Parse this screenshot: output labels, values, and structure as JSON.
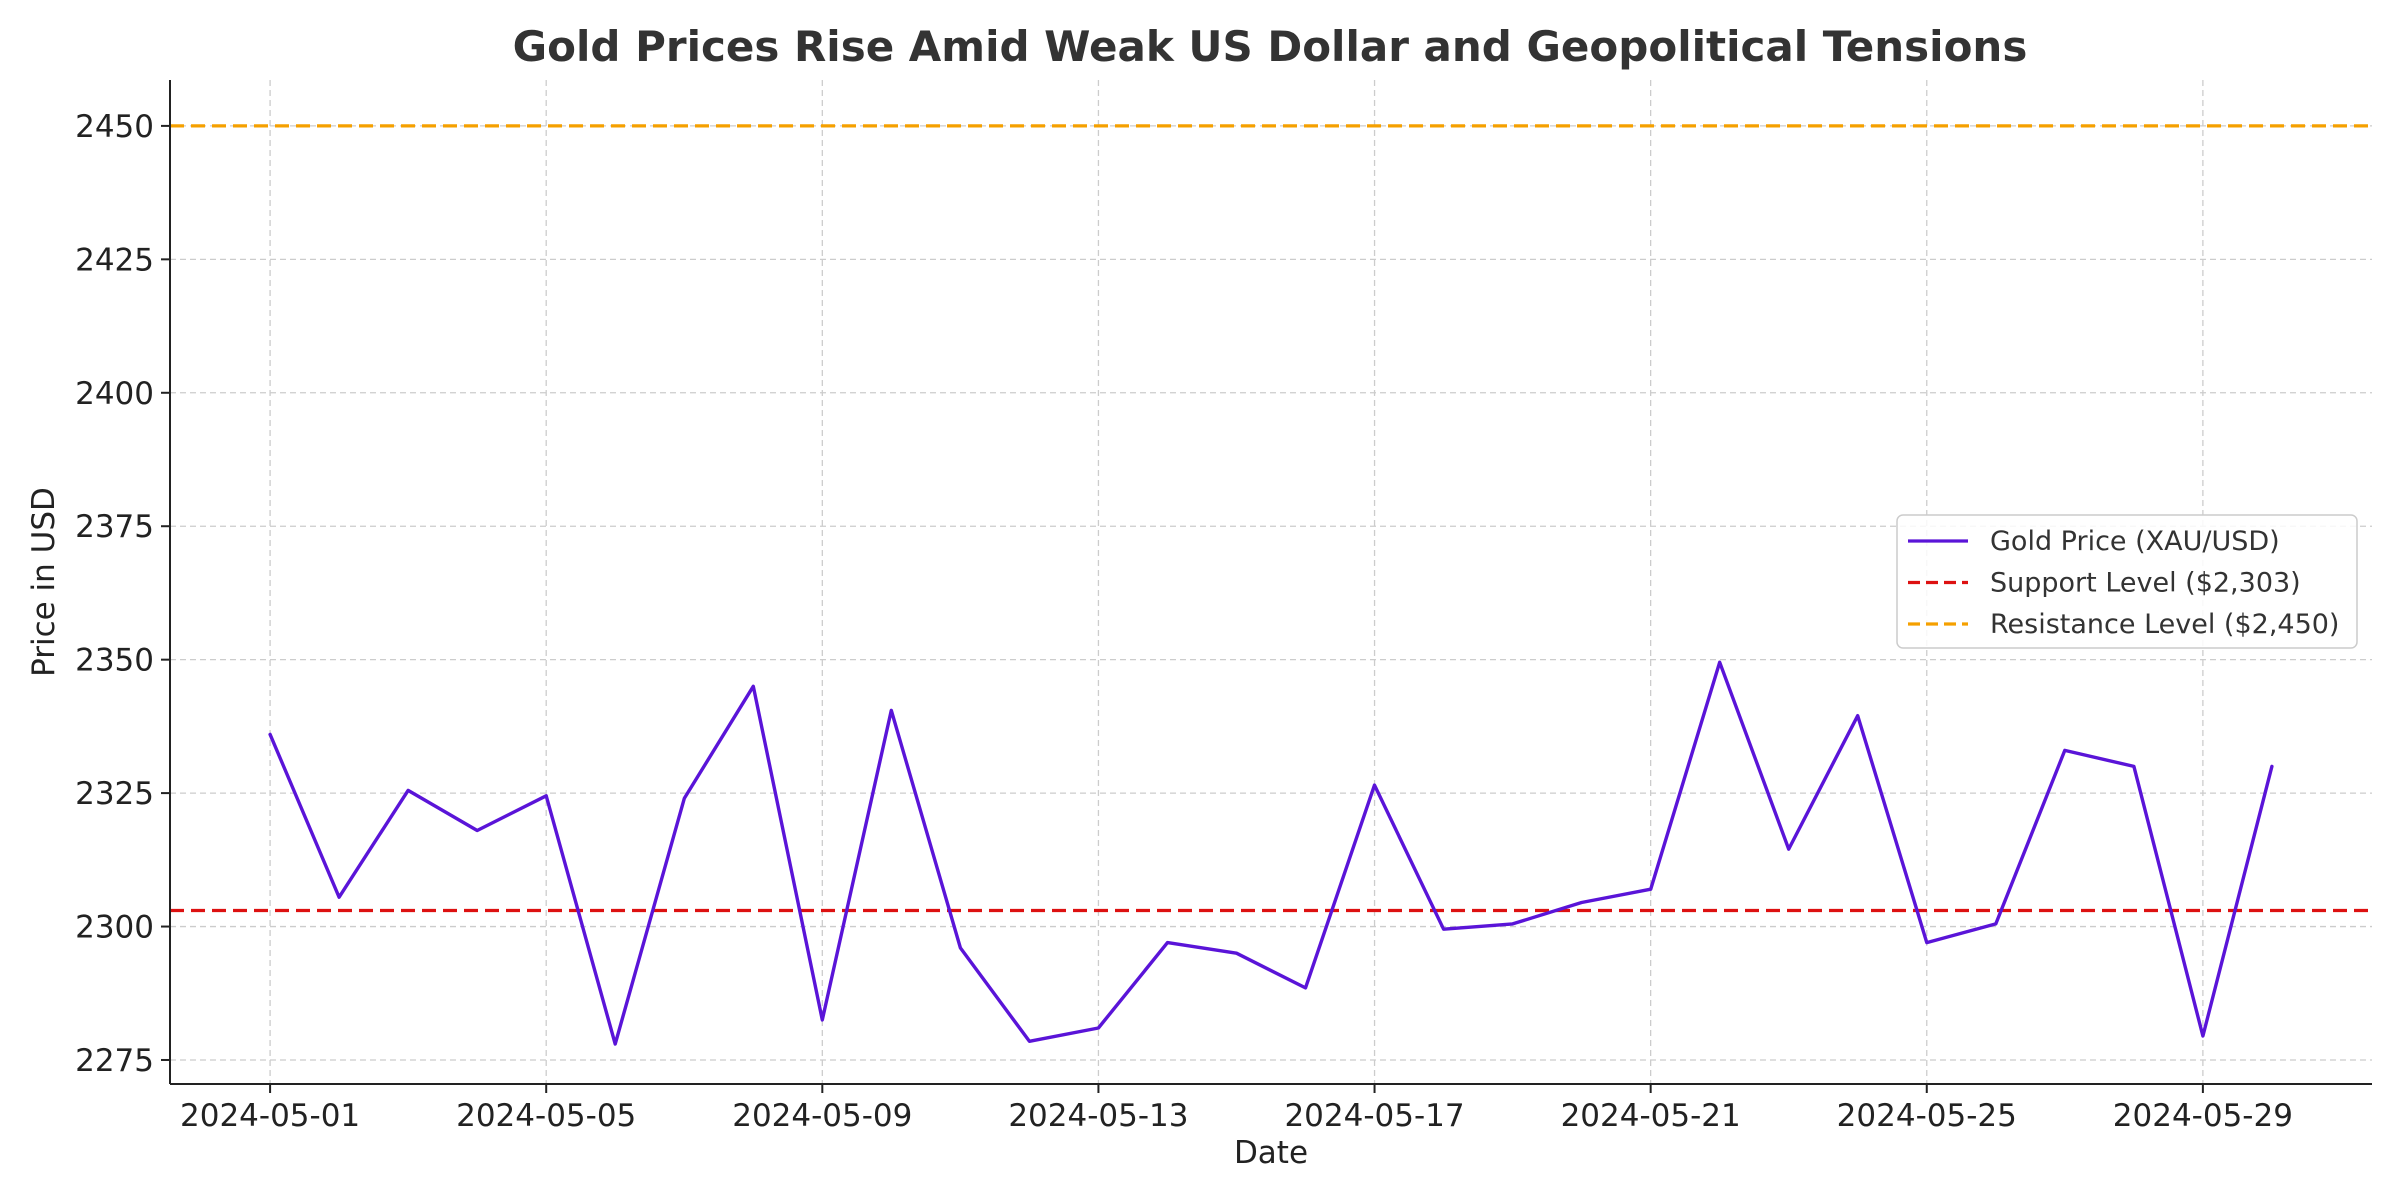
{
  "chart_data": {
    "type": "line",
    "title": "Gold Prices Rise Amid Weak US Dollar and Geopolitical Tensions",
    "xlabel": "Date",
    "ylabel": "Price in USD",
    "x": [
      "2024-05-01",
      "2024-05-02",
      "2024-05-03",
      "2024-05-04",
      "2024-05-05",
      "2024-05-06",
      "2024-05-07",
      "2024-05-08",
      "2024-05-09",
      "2024-05-10",
      "2024-05-11",
      "2024-05-12",
      "2024-05-13",
      "2024-05-14",
      "2024-05-15",
      "2024-05-16",
      "2024-05-17",
      "2024-05-18",
      "2024-05-19",
      "2024-05-20",
      "2024-05-21",
      "2024-05-22",
      "2024-05-23",
      "2024-05-24",
      "2024-05-25",
      "2024-05-26",
      "2024-05-27",
      "2024-05-28",
      "2024-05-29",
      "2024-05-30"
    ],
    "series": [
      {
        "name": "Gold Price (XAU/USD)",
        "color": "#5a14d8",
        "values": [
          2336,
          2305.5,
          2325.5,
          2318,
          2324.5,
          2278,
          2324,
          2345,
          2282.5,
          2340.5,
          2296,
          2278.5,
          2281,
          2297,
          2295,
          2288.5,
          2326.5,
          2299.5,
          2300.5,
          2304.5,
          2307,
          2349.5,
          2314.5,
          2339.5,
          2297,
          2300.5,
          2333,
          2330,
          2279.5,
          2330
        ]
      }
    ],
    "reference_lines": [
      {
        "name": "Support Level ($2,303)",
        "value": 2303,
        "color": "#dd1111",
        "style": "dashed"
      },
      {
        "name": "Resistance Level ($2,450)",
        "value": 2450,
        "color": "#f5a000",
        "style": "dashed"
      }
    ],
    "x_ticks": [
      "2024-05-01",
      "2024-05-05",
      "2024-05-09",
      "2024-05-13",
      "2024-05-17",
      "2024-05-21",
      "2024-05-25",
      "2024-05-29"
    ],
    "y_ticks": [
      2275,
      2300,
      2325,
      2350,
      2375,
      2400,
      2425,
      2450
    ],
    "xlim": [
      "2024-04-29 13:12",
      "2024-05-31 10:48"
    ],
    "ylim": [
      2270.5,
      2458.6
    ],
    "grid": true,
    "legend_position": "center-right"
  }
}
